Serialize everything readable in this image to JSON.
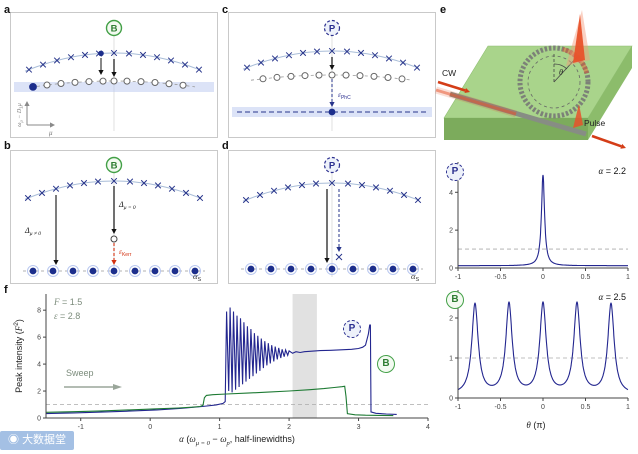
{
  "watermark": {
    "icon": "◉",
    "text": "大数据堂"
  },
  "badges": {
    "b": "B",
    "p": "P"
  },
  "panel_letters": {
    "a": "a",
    "b": "b",
    "c": "c",
    "d": "d",
    "e": "e",
    "f": "f"
  },
  "panels": {
    "a": {
      "ylabel_parts": [
        "ω",
        "μ",
        " − D",
        "1",
        "μ"
      ],
      "xlabel": "μ"
    },
    "b": {
      "delta_nz": [
        "Δ",
        "μ ≠ 0"
      ],
      "delta_z": [
        "Δ",
        "μ = 0"
      ],
      "kerr": [
        "ε",
        "Kerr"
      ],
      "alpha_s": [
        "α",
        "S"
      ]
    },
    "c": {
      "phc": [
        "ε",
        "PhC"
      ]
    },
    "d": {
      "alpha_s": [
        "α",
        "S"
      ]
    },
    "e": {
      "cw": "CW",
      "pulse": "Pulse",
      "theta": "θ"
    }
  },
  "chart_data": [
    {
      "id": "f",
      "type": "line",
      "xlabel": "α (ω_{μ=0} − ω_p, half-linewidths)",
      "xlabel_parts": [
        "α",
        " (",
        "ω",
        "μ = 0",
        " − ",
        "ω",
        "p",
        ", half-linewidths)"
      ],
      "ylabel": "Peak intensity (F²)",
      "ylabel_parts": [
        "Peak intensity (",
        "F",
        "2",
        ")"
      ],
      "xlim": [
        -1.5,
        4
      ],
      "ylim": [
        0,
        9.2
      ],
      "xticks": [
        -1,
        0,
        1,
        2,
        3,
        4
      ],
      "yticks": [
        0,
        2,
        4,
        6,
        8
      ],
      "dashed_hline": 1,
      "shaded_band": [
        2.05,
        2.4
      ],
      "annotations": {
        "F": [
          "F",
          " = 1.5"
        ],
        "eps": [
          "ε",
          " = 2.8"
        ],
        "sweep": "Sweep"
      },
      "series": [
        {
          "name": "P",
          "color": "#23268f",
          "points": [
            [
              -1.5,
              0.33
            ],
            [
              -1.1,
              0.38
            ],
            [
              -0.7,
              0.44
            ],
            [
              -0.3,
              0.51
            ],
            [
              0.1,
              0.6
            ],
            [
              0.45,
              0.72
            ],
            [
              0.75,
              0.85
            ],
            [
              0.95,
              0.97
            ],
            [
              1.05,
              1.08
            ],
            [
              1.08,
              1.22
            ],
            [
              1.1,
              7.9
            ],
            [
              1.13,
              2.0
            ],
            [
              1.15,
              8.2
            ],
            [
              1.18,
              1.9
            ],
            [
              1.2,
              7.9
            ],
            [
              1.23,
              2.1
            ],
            [
              1.25,
              7.6
            ],
            [
              1.28,
              2.3
            ],
            [
              1.3,
              7.4
            ],
            [
              1.33,
              2.5
            ],
            [
              1.35,
              7.1
            ],
            [
              1.38,
              2.7
            ],
            [
              1.4,
              6.8
            ],
            [
              1.43,
              2.9
            ],
            [
              1.45,
              6.6
            ],
            [
              1.48,
              3.1
            ],
            [
              1.5,
              6.3
            ],
            [
              1.53,
              3.3
            ],
            [
              1.55,
              6.1
            ],
            [
              1.58,
              3.5
            ],
            [
              1.6,
              5.9
            ],
            [
              1.63,
              3.7
            ],
            [
              1.65,
              5.7
            ],
            [
              1.68,
              3.9
            ],
            [
              1.7,
              5.55
            ],
            [
              1.73,
              4.05
            ],
            [
              1.75,
              5.4
            ],
            [
              1.78,
              4.2
            ],
            [
              1.8,
              5.3
            ],
            [
              1.83,
              4.35
            ],
            [
              1.85,
              5.2
            ],
            [
              1.88,
              4.45
            ],
            [
              1.9,
              5.1
            ],
            [
              1.93,
              4.55
            ],
            [
              1.95,
              5.05
            ],
            [
              1.98,
              4.65
            ],
            [
              2.0,
              4.98
            ],
            [
              2.05,
              4.8
            ],
            [
              2.1,
              4.92
            ],
            [
              2.16,
              4.86
            ],
            [
              2.22,
              4.92
            ],
            [
              2.3,
              4.95
            ],
            [
              2.45,
              5.0
            ],
            [
              2.6,
              5.02
            ],
            [
              2.75,
              5.06
            ],
            [
              2.9,
              5.1
            ],
            [
              3.0,
              5.16
            ],
            [
              3.06,
              5.25
            ],
            [
              3.1,
              5.4
            ],
            [
              3.14,
              6.2
            ],
            [
              3.16,
              6.9
            ],
            [
              3.17,
              6.9
            ],
            [
              3.18,
              0.45
            ],
            [
              3.25,
              0.35
            ],
            [
              3.4,
              0.3
            ],
            [
              3.55,
              0.27
            ]
          ]
        },
        {
          "name": "B",
          "color": "#1d7a33",
          "points": [
            [
              -1.5,
              0.42
            ],
            [
              -1.1,
              0.47
            ],
            [
              -0.7,
              0.53
            ],
            [
              -0.3,
              0.6
            ],
            [
              0.1,
              0.68
            ],
            [
              0.4,
              0.74
            ],
            [
              0.6,
              0.8
            ],
            [
              0.72,
              0.85
            ],
            [
              0.76,
              0.95
            ],
            [
              0.78,
              1.5
            ],
            [
              0.81,
              1.68
            ],
            [
              0.9,
              1.73
            ],
            [
              1.1,
              1.78
            ],
            [
              1.4,
              1.85
            ],
            [
              1.7,
              1.92
            ],
            [
              2.0,
              2.0
            ],
            [
              2.3,
              2.1
            ],
            [
              2.5,
              2.18
            ],
            [
              2.65,
              2.26
            ],
            [
              2.76,
              2.32
            ],
            [
              2.8,
              2.35
            ],
            [
              2.82,
              1.6
            ],
            [
              2.84,
              0.32
            ],
            [
              2.95,
              0.24
            ],
            [
              3.1,
              0.21
            ],
            [
              3.3,
              0.19
            ],
            [
              3.5,
              0.18
            ]
          ]
        }
      ]
    },
    {
      "id": "p_plot",
      "type": "line",
      "badge": "P",
      "alpha_label": [
        "α",
        " = 2.2"
      ],
      "xlim": [
        -1,
        1
      ],
      "ylim": [
        0,
        5.6
      ],
      "xticks": [
        -1,
        -0.5,
        0,
        0.5,
        1
      ],
      "yticks": [
        0,
        2,
        4
      ],
      "dashed_hline": 1,
      "series": [
        {
          "name": "P",
          "color": "#23268f",
          "peaks": {
            "centers": [
              0
            ],
            "width": 0.022,
            "height": 4.8,
            "base": 0.12
          }
        }
      ]
    },
    {
      "id": "b_plot",
      "type": "line",
      "badge": "B",
      "alpha_label": [
        "α",
        " = 2.5"
      ],
      "xlabel": "θ (π)",
      "xlabel_parts": [
        "θ",
        " (π)"
      ],
      "xlim": [
        -1,
        1
      ],
      "ylim": [
        0,
        2.7
      ],
      "xticks": [
        -1,
        -0.5,
        0,
        0.5,
        1
      ],
      "yticks": [
        0,
        1,
        2
      ],
      "dashed_hline": 1,
      "series": [
        {
          "name": "B",
          "color": "#23268f",
          "peaks": {
            "centers": [
              -0.8,
              -0.4,
              0,
              0.4,
              0.8
            ],
            "width": 0.045,
            "height": 2.25,
            "base": 0.08
          }
        }
      ]
    }
  ]
}
